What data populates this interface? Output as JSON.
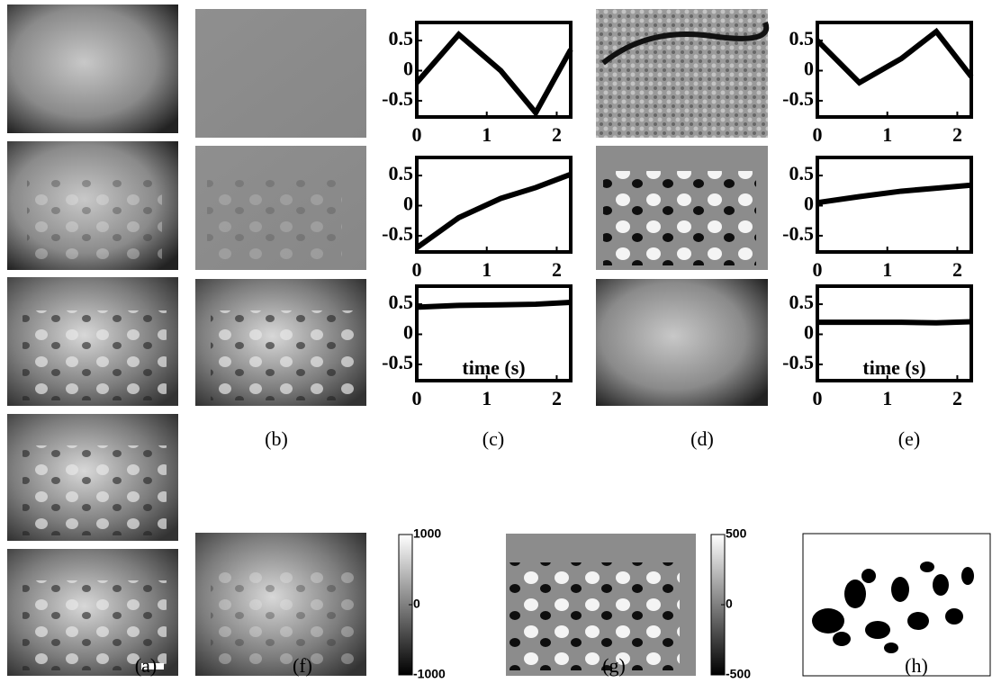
{
  "chart_data": [
    {
      "type": "line",
      "x": [
        0,
        0.6,
        1.2,
        1.7,
        2.2
      ],
      "values": [
        -0.2,
        0.6,
        0.0,
        -0.7,
        0.35
      ],
      "color": "#000000",
      "xlim": [
        0,
        2.2
      ],
      "ylim": [
        -0.77,
        0.8
      ],
      "xticks": [
        0,
        1,
        2
      ],
      "yticks": [
        0.5,
        0,
        -0.5
      ]
    },
    {
      "type": "line",
      "x": [
        0,
        0.6,
        1.2,
        1.7,
        2.2
      ],
      "values": [
        -0.7,
        -0.2,
        0.12,
        0.3,
        0.52
      ],
      "color": "#000000",
      "xlim": [
        0,
        2.2
      ],
      "ylim": [
        -0.77,
        0.8
      ],
      "xticks": [
        0,
        1,
        2
      ],
      "yticks": [
        0.5,
        0,
        -0.5
      ]
    },
    {
      "type": "line",
      "x": [
        0,
        0.6,
        1.2,
        1.7,
        2.2
      ],
      "values": [
        0.45,
        0.48,
        0.49,
        0.5,
        0.53
      ],
      "color": "#000000",
      "xlim": [
        0,
        2.2
      ],
      "ylim": [
        -0.77,
        0.8
      ],
      "xticks": [
        0,
        1,
        2
      ],
      "yticks": [
        0.5,
        0,
        -0.5
      ],
      "xlabel": "time (s)"
    },
    {
      "type": "line",
      "x": [
        0,
        0.6,
        1.2,
        1.7,
        2.2
      ],
      "values": [
        0.5,
        -0.2,
        0.2,
        0.65,
        -0.1
      ],
      "color": "#000000",
      "xlim": [
        0,
        2.2
      ],
      "ylim": [
        -0.77,
        0.8
      ],
      "xticks": [
        0,
        1,
        2
      ],
      "yticks": [
        0.5,
        0,
        -0.5
      ]
    },
    {
      "type": "line",
      "x": [
        0,
        0.6,
        1.2,
        1.7,
        2.2
      ],
      "values": [
        0.05,
        0.15,
        0.24,
        0.29,
        0.34
      ],
      "color": "#000000",
      "xlim": [
        0,
        2.2
      ],
      "ylim": [
        -0.77,
        0.8
      ],
      "xticks": [
        0,
        1,
        2
      ],
      "yticks": [
        0.5,
        0,
        -0.5
      ]
    },
    {
      "type": "line",
      "x": [
        0,
        0.6,
        1.2,
        1.7,
        2.2
      ],
      "values": [
        0.2,
        0.2,
        0.2,
        0.19,
        0.21
      ],
      "color": "#000000",
      "xlim": [
        0,
        2.2
      ],
      "ylim": [
        -0.77,
        0.8
      ],
      "xticks": [
        0,
        1,
        2
      ],
      "yticks": [
        0.5,
        0,
        -0.5
      ],
      "xlabel": "time (s)"
    }
  ],
  "panel_labels": [
    "(a)",
    "(b)",
    "(c)",
    "(d)",
    "(e)",
    "(f)",
    "(g)",
    "(h)"
  ],
  "colorbars": [
    {
      "lim": [
        -1000,
        1000
      ],
      "ticks": [
        1000,
        0,
        -1000
      ]
    },
    {
      "lim": [
        -500,
        500
      ],
      "ticks": [
        500,
        0,
        -500
      ]
    }
  ]
}
